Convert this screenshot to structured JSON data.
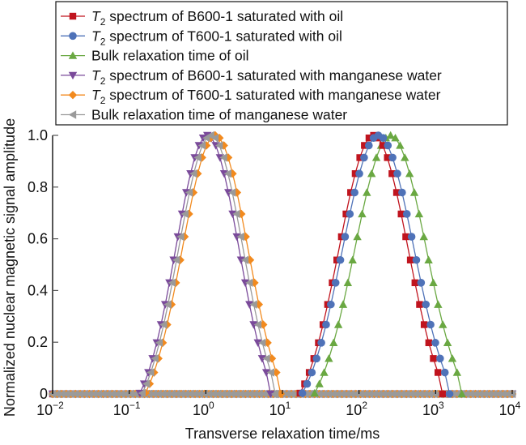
{
  "chart_data": {
    "type": "line",
    "title": "",
    "xlabel": "Transverse relaxation time/ms",
    "ylabel": "Normalized nuclear magnetic signal amplitude",
    "xscale": "log",
    "xlim": [
      0.01,
      10000
    ],
    "ylim": [
      0,
      1.0
    ],
    "grid": false,
    "legend_position": "top",
    "x_ticks": [
      {
        "base": "10",
        "exp": "−2",
        "value": 0.01
      },
      {
        "base": "10",
        "exp": "−1",
        "value": 0.1
      },
      {
        "base": "10",
        "exp": "0",
        "value": 1
      },
      {
        "base": "10",
        "exp": "1",
        "value": 10
      },
      {
        "base": "10",
        "exp": "2",
        "value": 100
      },
      {
        "base": "10",
        "exp": "3",
        "value": 1000
      },
      {
        "base": "10",
        "exp": "4",
        "value": 10000
      }
    ],
    "y_ticks": [
      {
        "label": "0",
        "value": 0
      },
      {
        "label": "0.2",
        "value": 0.2
      },
      {
        "label": "0.4",
        "value": 0.4
      },
      {
        "label": "0.6",
        "value": 0.6
      },
      {
        "label": "0.8",
        "value": 0.8
      },
      {
        "label": "1.0",
        "value": 1.0
      }
    ],
    "series": [
      {
        "name_prefix": "T",
        "name_sub": "2",
        "name_rest": " spectrum of B600-1 saturated with oil",
        "color": "#c0141e",
        "marker": "square",
        "x_start_log10": 1.23,
        "x_step_log10": 0.06,
        "y": [
          0.003,
          0.039,
          0.083,
          0.137,
          0.198,
          0.268,
          0.346,
          0.43,
          0.518,
          0.608,
          0.696,
          0.779,
          0.852,
          0.914,
          0.961,
          0.99,
          1.0,
          0.99,
          0.961,
          0.914,
          0.852,
          0.779,
          0.696,
          0.608,
          0.518,
          0.43,
          0.346,
          0.268,
          0.198,
          0.137,
          0.083,
          0.0
        ]
      },
      {
        "name_prefix": "T",
        "name_sub": "2",
        "name_rest": " spectrum of T600-1 saturated with oil",
        "color": "#4f72b8",
        "marker": "circle",
        "x_start_log10": 1.26,
        "x_step_log10": 0.062,
        "y": [
          0.003,
          0.039,
          0.083,
          0.137,
          0.198,
          0.268,
          0.346,
          0.43,
          0.518,
          0.608,
          0.696,
          0.779,
          0.852,
          0.914,
          0.961,
          0.99,
          1.0,
          0.99,
          0.961,
          0.914,
          0.852,
          0.779,
          0.696,
          0.608,
          0.518,
          0.43,
          0.346,
          0.268,
          0.198,
          0.137,
          0.083,
          0.0
        ]
      },
      {
        "name_prefix": "",
        "name_sub": "",
        "name_rest": "Bulk relaxation time of oil",
        "color": "#6aa842",
        "marker": "triangle-up",
        "x_start_log10": 1.42,
        "x_step_log10": 0.062,
        "y": [
          0.003,
          0.039,
          0.083,
          0.137,
          0.198,
          0.268,
          0.346,
          0.43,
          0.518,
          0.608,
          0.696,
          0.779,
          0.852,
          0.914,
          0.961,
          0.99,
          1.0,
          0.99,
          0.961,
          0.914,
          0.852,
          0.779,
          0.696,
          0.608,
          0.518,
          0.43,
          0.346,
          0.268,
          0.198,
          0.137,
          0.083,
          0.0
        ]
      },
      {
        "name_prefix": "T",
        "name_sub": "2",
        "name_rest": " spectrum of B600-1 saturated with manganese water",
        "color": "#7a4a9a",
        "marker": "triangle-down",
        "x_start_log10": -0.86,
        "x_step_log10": 0.055,
        "y": [
          0.003,
          0.039,
          0.083,
          0.137,
          0.198,
          0.268,
          0.346,
          0.43,
          0.518,
          0.608,
          0.696,
          0.779,
          0.852,
          0.914,
          0.961,
          0.99,
          1.0,
          0.99,
          0.961,
          0.914,
          0.852,
          0.779,
          0.696,
          0.608,
          0.518,
          0.43,
          0.346,
          0.268,
          0.198,
          0.137,
          0.083,
          0.0
        ]
      },
      {
        "name_prefix": "T",
        "name_sub": "2",
        "name_rest": " spectrum of T600-1 saturated with manganese water",
        "color": "#f28a1e",
        "marker": "diamond",
        "x_start_log10": -0.79,
        "x_step_log10": 0.057,
        "y": [
          0.003,
          0.039,
          0.083,
          0.137,
          0.198,
          0.268,
          0.346,
          0.43,
          0.518,
          0.608,
          0.696,
          0.779,
          0.852,
          0.914,
          0.961,
          0.99,
          1.0,
          0.99,
          0.961,
          0.914,
          0.852,
          0.779,
          0.696,
          0.608,
          0.518,
          0.43,
          0.346,
          0.268,
          0.198,
          0.137,
          0.083,
          0.0
        ]
      },
      {
        "name_prefix": "",
        "name_sub": "",
        "name_rest": "Bulk relaxation time of manganese water",
        "color": "#9a9a9a",
        "marker": "triangle-left",
        "x_start_log10": -0.83,
        "x_step_log10": 0.056,
        "y": [
          0.003,
          0.039,
          0.083,
          0.137,
          0.198,
          0.268,
          0.346,
          0.43,
          0.518,
          0.608,
          0.696,
          0.779,
          0.852,
          0.914,
          0.961,
          0.99,
          1.0,
          0.99,
          0.961,
          0.914,
          0.852,
          0.779,
          0.696,
          0.608,
          0.518,
          0.43,
          0.346,
          0.268,
          0.198,
          0.137,
          0.083,
          0.0
        ]
      }
    ]
  }
}
